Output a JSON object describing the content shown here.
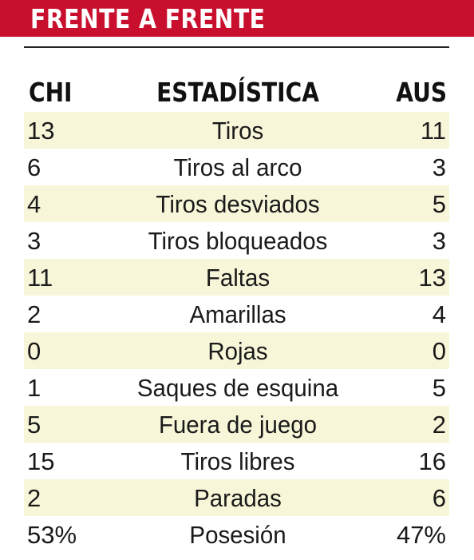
{
  "header": {
    "title": "FRENTE A FRENTE"
  },
  "columns": {
    "left": "CHI",
    "center": "ESTADÍSTICA",
    "right": "AUS"
  },
  "colors": {
    "header_bg": "#c8102e",
    "row_shade": "#f8f6d9",
    "text": "#1a1a1a"
  },
  "rows": [
    {
      "chi": "13",
      "stat": "Tiros",
      "aus": "11"
    },
    {
      "chi": "6",
      "stat": "Tiros al arco",
      "aus": "3"
    },
    {
      "chi": "4",
      "stat": "Tiros desviados",
      "aus": "5"
    },
    {
      "chi": "3",
      "stat": "Tiros bloqueados",
      "aus": "3"
    },
    {
      "chi": "11",
      "stat": "Faltas",
      "aus": "13"
    },
    {
      "chi": "2",
      "stat": "Amarillas",
      "aus": "4"
    },
    {
      "chi": "0",
      "stat": "Rojas",
      "aus": "0"
    },
    {
      "chi": "1",
      "stat": "Saques de esquina",
      "aus": "5"
    },
    {
      "chi": "5",
      "stat": "Fuera de juego",
      "aus": "2"
    },
    {
      "chi": "15",
      "stat": "Tiros libres",
      "aus": "16"
    },
    {
      "chi": "2",
      "stat": "Paradas",
      "aus": "6"
    },
    {
      "chi": "53%",
      "stat": "Posesión",
      "aus": "47%"
    }
  ]
}
